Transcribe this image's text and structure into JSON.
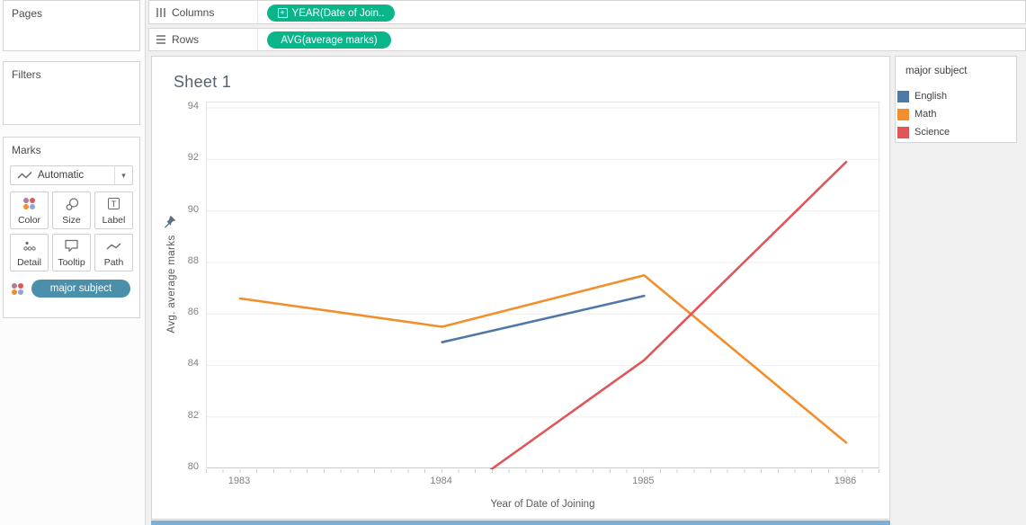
{
  "left_panel": {
    "pages_title": "Pages",
    "filters_title": "Filters",
    "marks": {
      "title": "Marks",
      "mark_type_selector": "Automatic",
      "buttons": [
        {
          "label": "Color"
        },
        {
          "label": "Size"
        },
        {
          "label": "Label"
        },
        {
          "label": "Detail"
        },
        {
          "label": "Tooltip"
        },
        {
          "label": "Path"
        }
      ],
      "encoding_pill": "major subject"
    }
  },
  "shelves": {
    "columns": {
      "label": "Columns",
      "pill": "YEAR(Date of Join.."
    },
    "rows": {
      "label": "Rows",
      "pill": "AVG(average marks)"
    }
  },
  "pill_colors": {
    "measure_green": "#0bb58a",
    "dimension_blue": "#4b90aa"
  },
  "sheet": {
    "title": "Sheet 1"
  },
  "legend": {
    "title": "major subject",
    "items": [
      {
        "label": "English",
        "color": "#4e79a7"
      },
      {
        "label": "Math",
        "color": "#f28e2b"
      },
      {
        "label": "Science",
        "color": "#e15759"
      }
    ]
  },
  "chart_data": {
    "type": "line",
    "title": "Sheet 1",
    "xlabel": "Year of Date of Joining",
    "ylabel": "Avg. average marks",
    "x": [
      1983,
      1984,
      1985,
      1986
    ],
    "yticks": [
      80,
      82,
      84,
      86,
      88,
      90,
      92,
      94
    ],
    "ylim": [
      80,
      94
    ],
    "grid": true,
    "legend_position": "right",
    "series": [
      {
        "name": "English",
        "color": "#4e79a7",
        "values": [
          null,
          84.9,
          86.7,
          null
        ]
      },
      {
        "name": "Math",
        "color": "#f28e2b",
        "values": [
          86.6,
          85.5,
          87.5,
          81.0
        ]
      },
      {
        "name": "Science",
        "color": "#e15759",
        "values": [
          null,
          78.6,
          84.2,
          91.9
        ]
      }
    ]
  }
}
